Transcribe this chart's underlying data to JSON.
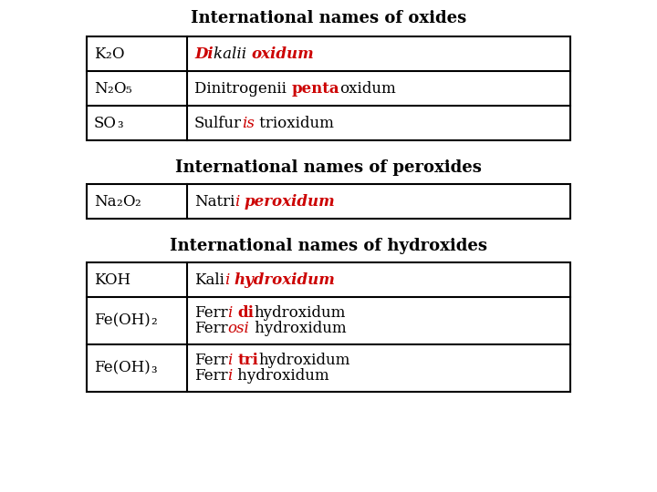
{
  "bg_color": "#ffffff",
  "title_oxides": "International names of oxides",
  "title_peroxides": "International names of peroxides",
  "title_hydroxides": "International names of hydroxides"
}
